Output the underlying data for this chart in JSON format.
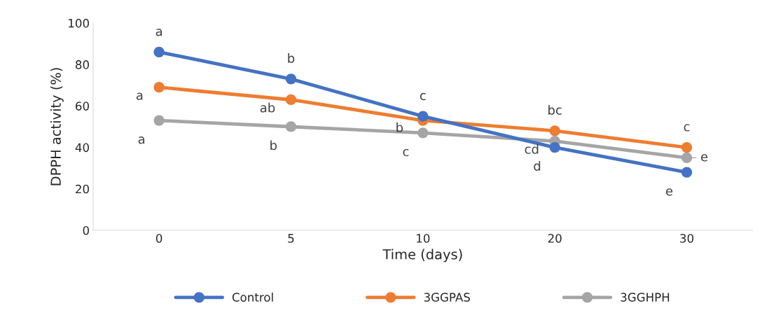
{
  "chart_data": {
    "type": "line",
    "xlabel": "Time (days)",
    "ylabel": "DPPH activity (%)",
    "categories": [
      "0",
      "5",
      "10",
      "20",
      "30"
    ],
    "series": [
      {
        "name": "Control",
        "color": "#4472c4",
        "values": [
          86,
          73,
          55,
          40,
          28
        ]
      },
      {
        "name": "3GGPAS",
        "color": "#ed7d31",
        "values": [
          69,
          63,
          53,
          48,
          40
        ]
      },
      {
        "name": "3GGHPH",
        "color": "#a5a5a5",
        "values": [
          53,
          50,
          47,
          43,
          35
        ]
      }
    ],
    "ylim": [
      0,
      100
    ],
    "yticks": [
      0,
      20,
      40,
      60,
      80,
      100
    ],
    "grid": false,
    "legend": "bottom",
    "marker": "circle",
    "line_style": "solid",
    "annotations": [
      {
        "text": "a",
        "x": "0",
        "y": 86
      },
      {
        "text": "a",
        "x": "0",
        "y": 69
      },
      {
        "text": "a",
        "x": "0",
        "y": 53
      },
      {
        "text": "b",
        "x": "5",
        "y": 73
      },
      {
        "text": "ab",
        "x": "5",
        "y": 63
      },
      {
        "text": "b",
        "x": "5",
        "y": 50
      },
      {
        "text": "c",
        "x": "10",
        "y": 55
      },
      {
        "text": "b",
        "x": "10",
        "y": 53
      },
      {
        "text": "c",
        "x": "10",
        "y": 47
      },
      {
        "text": "bc",
        "x": "20",
        "y": 48
      },
      {
        "text": "cd",
        "x": "20",
        "y": 43
      },
      {
        "text": "d",
        "x": "20",
        "y": 40
      },
      {
        "text": "c",
        "x": "30",
        "y": 40
      },
      {
        "text": "e",
        "x": "30",
        "y": 35
      },
      {
        "text": "e",
        "x": "30",
        "y": 28
      }
    ]
  }
}
